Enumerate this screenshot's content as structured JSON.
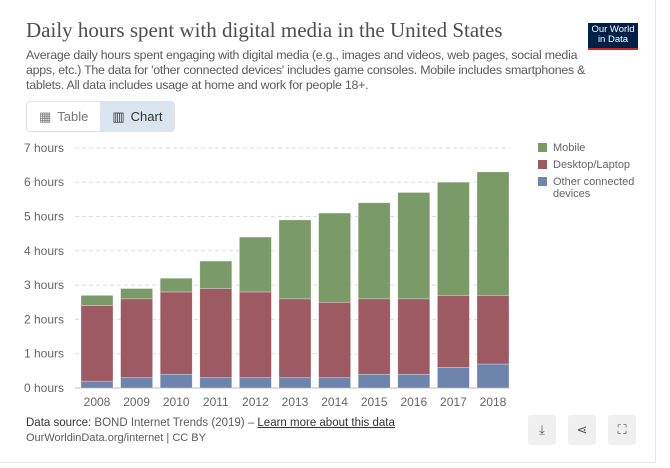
{
  "header": {
    "title": "Daily hours spent with digital media in the United States",
    "subtitle": "Average daily hours spent engaging with digital media (e.g., images and videos, web pages, social media apps, etc.) The data for 'other connected devices' includes game consoles. Mobile includes smartphones & tablets. All data includes usage at home and work for people 18+.",
    "logo_text": "Our World in Data"
  },
  "tabs": [
    {
      "label": "Table",
      "icon": "table-icon"
    },
    {
      "label": "Chart",
      "icon": "chart-icon",
      "active": true
    }
  ],
  "chart_data": {
    "type": "bar",
    "stacked": true,
    "categories": [
      "2008",
      "2009",
      "2010",
      "2011",
      "2012",
      "2013",
      "2014",
      "2015",
      "2016",
      "2017",
      "2018"
    ],
    "series": [
      {
        "name": "Other connected devices",
        "color": "#6d84ad",
        "values": [
          0.2,
          0.3,
          0.4,
          0.3,
          0.3,
          0.3,
          0.3,
          0.4,
          0.4,
          0.6,
          0.7
        ]
      },
      {
        "name": "Desktop/Laptop",
        "color": "#9d5a62",
        "values": [
          2.2,
          2.3,
          2.4,
          2.6,
          2.5,
          2.3,
          2.2,
          2.2,
          2.2,
          2.1,
          2.0
        ]
      },
      {
        "name": "Mobile",
        "color": "#7a9a68",
        "values": [
          0.3,
          0.3,
          0.4,
          0.8,
          1.6,
          2.3,
          2.6,
          2.8,
          3.1,
          3.3,
          3.6
        ]
      }
    ],
    "yticks": [
      "0 hours",
      "1 hours",
      "2 hours",
      "3 hours",
      "4 hours",
      "5 hours",
      "6 hours",
      "7 hours"
    ],
    "ylim": [
      0,
      7
    ],
    "grid": true,
    "legend_position": "right",
    "legend": [
      "Mobile",
      "Desktop/Laptop",
      "Other connected devices"
    ]
  },
  "footer": {
    "source_label": "Data source:",
    "source": "BOND Internet Trends (2019) – ",
    "link": "Learn more about this data",
    "url_line": "OurWorldinData.org/internet | CC BY"
  },
  "buttons": [
    "download-icon",
    "share-icon",
    "fullscreen-icon"
  ]
}
